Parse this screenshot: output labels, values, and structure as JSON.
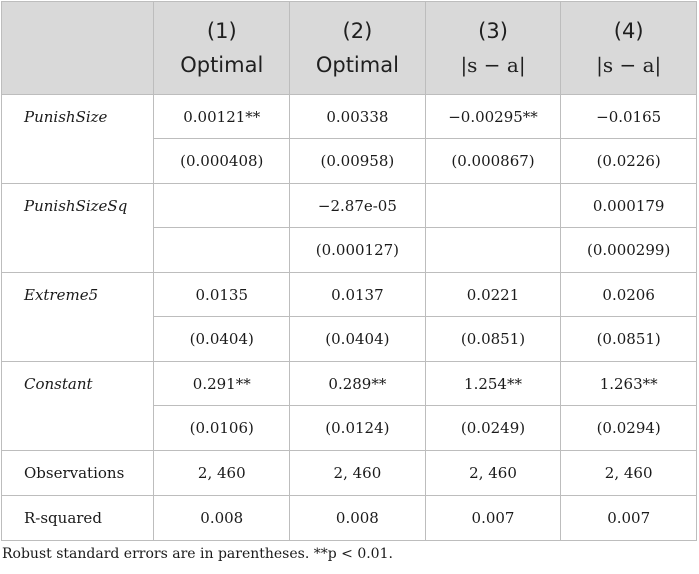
{
  "columns": [
    {
      "num": "(1)",
      "label": "Optimal",
      "math": false
    },
    {
      "num": "(2)",
      "label": "Optimal",
      "math": false
    },
    {
      "num": "(3)",
      "label": "|s − a|",
      "math": true
    },
    {
      "num": "(4)",
      "label": "|s − a|",
      "math": true
    }
  ],
  "rows": {
    "punish_size": {
      "name": "PunishSize",
      "coef": [
        "0.00121**",
        "0.00338",
        "−0.00295**",
        "−0.0165"
      ],
      "se": [
        "(0.000408)",
        "(0.00958)",
        "(0.000867)",
        "(0.0226)"
      ]
    },
    "punish_size_sq": {
      "name": "PunishSizeSq",
      "coef": [
        "",
        "−2.87e-05",
        "",
        "0.000179"
      ],
      "se": [
        "",
        "(0.000127)",
        "",
        "(0.000299)"
      ]
    },
    "extreme5": {
      "name": "Extreme5",
      "coef": [
        "0.0135",
        "0.0137",
        "0.0221",
        "0.0206"
      ],
      "se": [
        "(0.0404)",
        "(0.0404)",
        "(0.0851)",
        "(0.0851)"
      ]
    },
    "constant": {
      "name": "Constant",
      "coef": [
        "0.291**",
        "0.289**",
        "1.254**",
        "1.263**"
      ],
      "se": [
        "(0.0106)",
        "(0.0124)",
        "(0.0249)",
        "(0.0294)"
      ]
    },
    "observations": {
      "name": "Observations",
      "values": [
        "2, 460",
        "2, 460",
        "2, 460",
        "2, 460"
      ]
    },
    "r_squared": {
      "name": "R-squared",
      "values": [
        "0.008",
        "0.008",
        "0.007",
        "0.007"
      ]
    }
  },
  "note": "Robust standard errors are in parentheses. **p < 0.01.",
  "colors": {
    "header_bg": "#d9d9d9",
    "border": "#bdbdbd"
  }
}
